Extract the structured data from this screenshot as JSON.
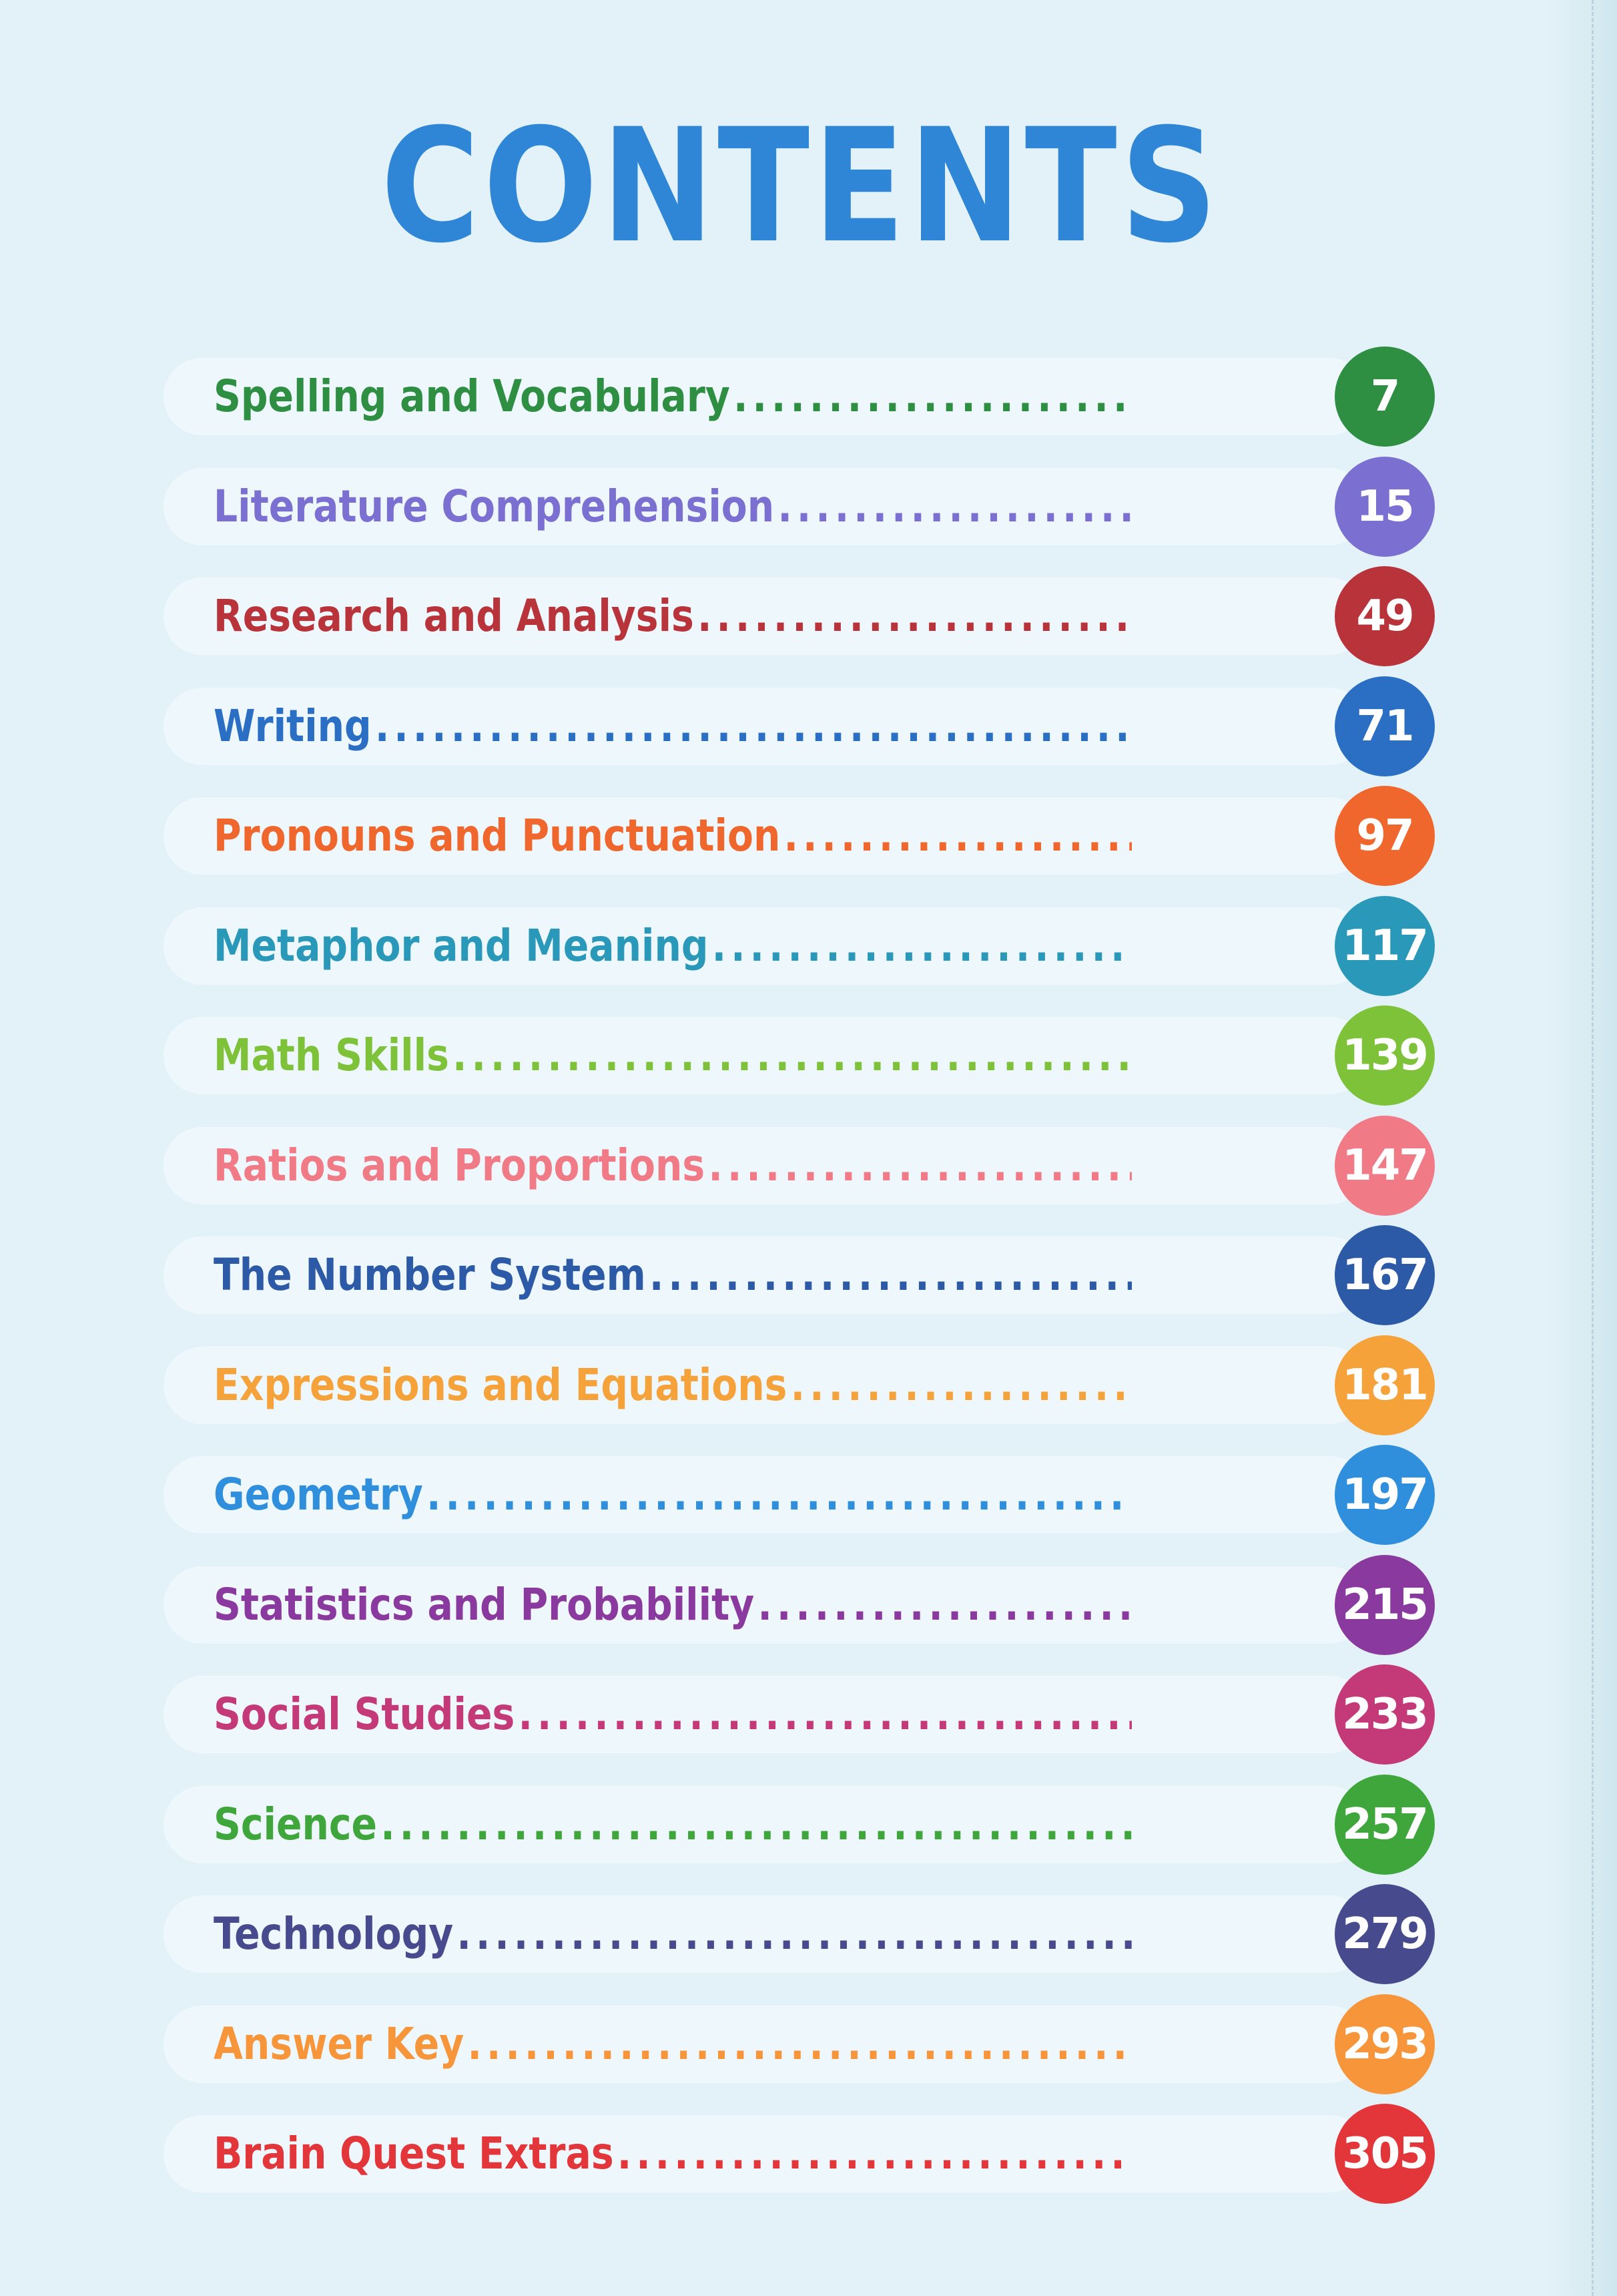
{
  "title": "CONTENTS",
  "entries": [
    {
      "label": "Spelling and Vocabulary",
      "page": "7",
      "color": "#2e8f43"
    },
    {
      "label": "Literature Comprehension",
      "page": "15",
      "color": "#7b6fd1"
    },
    {
      "label": "Research and Analysis",
      "page": "49",
      "color": "#b8343a"
    },
    {
      "label": "Writing",
      "page": "71",
      "color": "#2a6fc4"
    },
    {
      "label": "Pronouns and Punctuation",
      "page": "97",
      "color": "#f0672e"
    },
    {
      "label": "Metaphor and Meaning",
      "page": "117",
      "color": "#2a98b8"
    },
    {
      "label": "Math Skills",
      "page": "139",
      "color": "#7ec23a"
    },
    {
      "label": "Ratios and Proportions",
      "page": "147",
      "color": "#f07a85"
    },
    {
      "label": "The Number System",
      "page": "167",
      "color": "#2d5aa6"
    },
    {
      "label": "Expressions and Equations",
      "page": "181",
      "color": "#f6a23a"
    },
    {
      "label": "Geometry",
      "page": "197",
      "color": "#2f8fdc"
    },
    {
      "label": "Statistics and Probability",
      "page": "215",
      "color": "#8a3a9e"
    },
    {
      "label": "Social Studies",
      "page": "233",
      "color": "#c43a78"
    },
    {
      "label": "Science",
      "page": "257",
      "color": "#3ea63a"
    },
    {
      "label": "Technology",
      "page": "279",
      "color": "#474a8c"
    },
    {
      "label": "Answer Key",
      "page": "293",
      "color": "#f6953a"
    },
    {
      "label": "Brain Quest Extras",
      "page": "305",
      "color": "#e2363a"
    }
  ]
}
